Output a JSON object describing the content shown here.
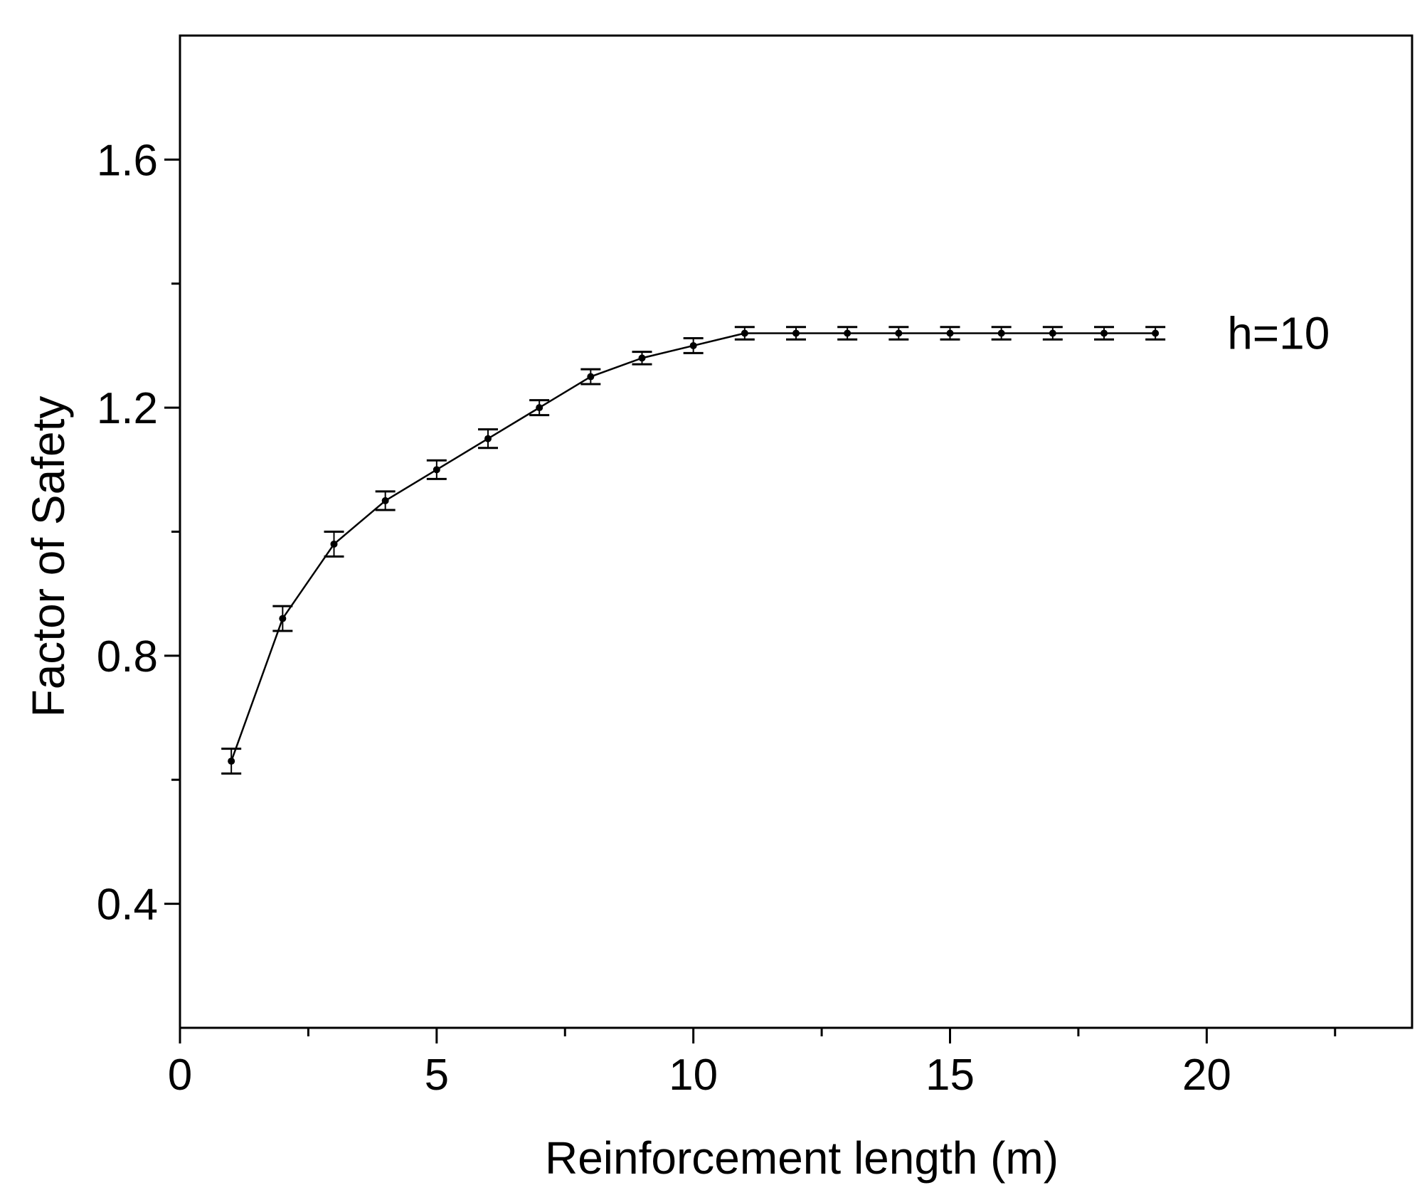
{
  "chart_data": {
    "type": "line",
    "title": "",
    "xlabel": "Reinforcement length (m)",
    "ylabel": "Factor of Safety",
    "xlim": [
      0,
      24
    ],
    "ylim": [
      0.2,
      1.8
    ],
    "x_major_ticks": [
      0,
      5,
      10,
      15,
      20
    ],
    "x_tick_labels": [
      "0",
      "5",
      "10",
      "15",
      "20"
    ],
    "x_minor_ticks": [
      2.5,
      7.5,
      12.5,
      17.5,
      22.5
    ],
    "y_major_ticks": [
      0.4,
      0.8,
      1.2,
      1.6
    ],
    "y_tick_labels": [
      "0.4",
      "0.8",
      "1.2",
      "1.6"
    ],
    "y_minor_ticks": [
      0.6,
      1.0,
      1.4
    ],
    "grid": false,
    "legend": "none",
    "series": [
      {
        "x": [
          1,
          2,
          3,
          4,
          5,
          6,
          7,
          8,
          9,
          10,
          11,
          12,
          13,
          14,
          15,
          16,
          17,
          18,
          19
        ],
        "y": [
          0.63,
          0.86,
          0.98,
          1.05,
          1.1,
          1.15,
          1.2,
          1.25,
          1.28,
          1.3,
          1.32,
          1.32,
          1.32,
          1.32,
          1.32,
          1.32,
          1.32,
          1.32,
          1.32
        ],
        "error": [
          0.02,
          0.02,
          0.02,
          0.015,
          0.015,
          0.015,
          0.012,
          0.012,
          0.01,
          0.012,
          0.01,
          0.01,
          0.01,
          0.01,
          0.01,
          0.01,
          0.01,
          0.01,
          0.01
        ],
        "color": "#000000"
      }
    ],
    "annotations": [
      {
        "text": "h=10",
        "x": 20.4,
        "y": 1.32
      }
    ]
  }
}
